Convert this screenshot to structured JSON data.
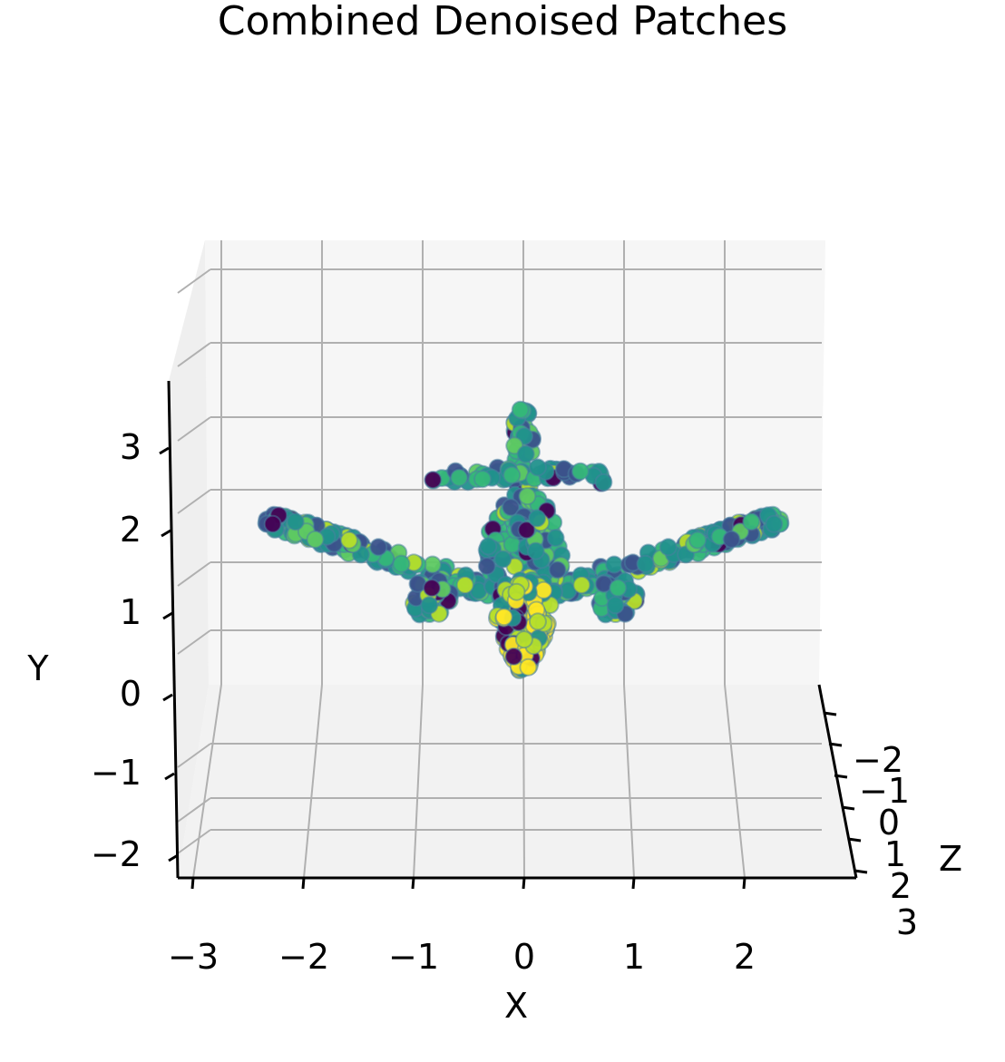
{
  "chart_data": {
    "type": "scatter",
    "title": "Combined Denoised Patches",
    "xlabel": "X",
    "ylabel": "Y",
    "zlabel": "Z",
    "x_ticks": [
      "−3",
      "−2",
      "−1",
      "0",
      "1",
      "2"
    ],
    "y_ticks": [
      "−2",
      "−1",
      "0",
      "1",
      "2",
      "3"
    ],
    "z_ticks": [
      "−2",
      "−1",
      "0",
      "1",
      "2",
      "3"
    ],
    "xlim": [
      -3.2,
      2.8
    ],
    "ylim": [
      -2.3,
      3.5
    ],
    "zlim": [
      -2.5,
      3.2
    ],
    "grid": true,
    "colormap": "viridis",
    "colors": [
      "#440154",
      "#3b528b",
      "#21918c",
      "#35b779",
      "#5ec962",
      "#b5de2b",
      "#fde725"
    ],
    "shape_parts": [
      {
        "part": "left wing",
        "from": [
          -2.5,
          2.0
        ],
        "to": [
          -0.3,
          1.2
        ]
      },
      {
        "part": "right wing",
        "from": [
          0.3,
          1.2
        ],
        "to": [
          2.5,
          2.0
        ]
      },
      {
        "part": "fuselage",
        "center": [
          0.0,
          1.2
        ]
      },
      {
        "part": "vertical tail",
        "from": [
          0.0,
          2.4
        ],
        "to": [
          0.0,
          3.2
        ]
      },
      {
        "part": "horizontal tail",
        "from": [
          -0.8,
          2.6
        ],
        "to": [
          0.8,
          2.6
        ]
      },
      {
        "part": "left engine",
        "center": [
          -0.9,
          1.1
        ]
      },
      {
        "part": "right engine",
        "center": [
          0.9,
          1.1
        ]
      },
      {
        "part": "nose",
        "center": [
          0.0,
          0.4
        ]
      }
    ]
  }
}
